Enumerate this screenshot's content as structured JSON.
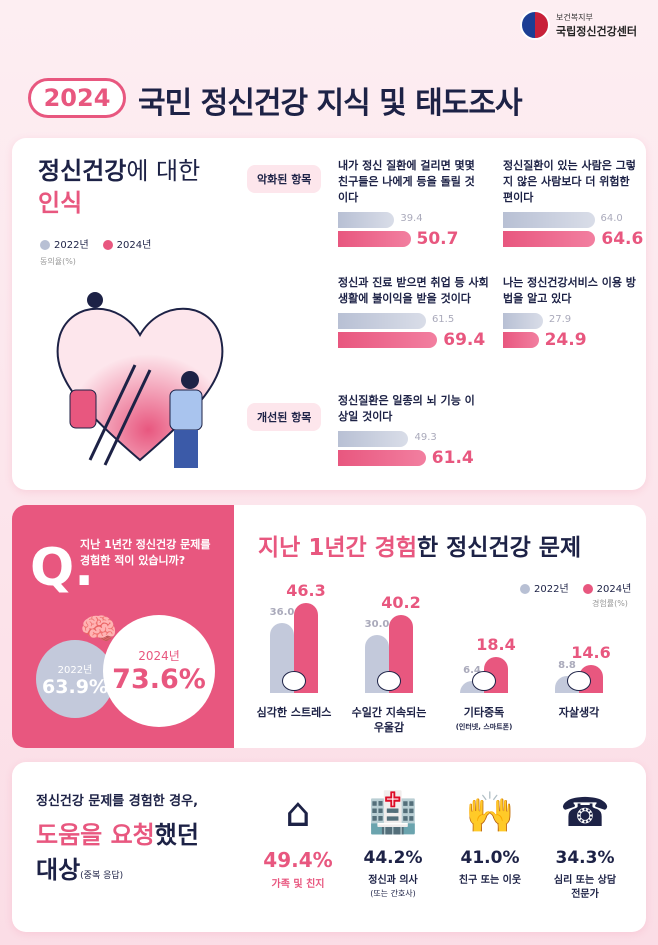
{
  "header": {
    "ministry": "보건복지부",
    "center": "국립정신건강센터",
    "year": "2024",
    "title": "국민 정신건강 지식 및 태도조사"
  },
  "colors": {
    "y2022": "#b8c0d4",
    "y2024": "#e8577f",
    "navy": "#1d2246"
  },
  "section1": {
    "title_a": "정신건강",
    "title_b": "에 대한",
    "title_c": "인식",
    "legend": [
      "2022년",
      "2024년"
    ],
    "unit": "동의율(%)",
    "tag_worse": "악화된 항목",
    "tag_better": "개선된 항목"
  },
  "section2": {
    "question_mark": "Q.",
    "question": "지난 1년간 정신건강 문제를 경험한 적이 있습니까?",
    "y2022_label": "2022년",
    "y2022_value": "63.9%",
    "y2024_label": "2024년",
    "y2024_value": "73.6%",
    "title_a": "지난 1년간 경험",
    "title_b": "한 정신건강 문제",
    "legend": [
      "2022년",
      "2024년"
    ],
    "unit": "경험률(%)"
  },
  "section3": {
    "title_a": "정신건강 문제를 경험한 경우,",
    "title_b": "도움을 요청",
    "title_c": "했던",
    "title_d": "대상",
    "title_note": "(중복 응답)",
    "items": [
      {
        "value": "49.4%",
        "label": "가족 및 친지",
        "sub": "",
        "icon": "house-icon"
      },
      {
        "value": "44.2%",
        "label": "정신과 의사",
        "sub": "(또는 간호사)",
        "icon": "hospital-icon"
      },
      {
        "value": "41.0%",
        "label": "친구 또는 이웃",
        "sub": "",
        "icon": "high-five-icon"
      },
      {
        "value": "34.3%",
        "label": "심리 또는 상담 전문가",
        "sub": "",
        "icon": "phone-counsel-icon"
      }
    ]
  },
  "chart_data": [
    {
      "type": "bar",
      "title": "정신건강에 대한 인식",
      "ylabel": "동의율(%)",
      "series_names": [
        "2022년",
        "2024년"
      ],
      "categories": [
        "내가 정신 질환에 걸리면 몇몇 친구들은 나에게 등을 돌릴 것이다",
        "정신질환이 있는 사람은 그렇지 않은 사람보다 더 위험한 편이다",
        "정신과 진료 받으면 취업 등 사회생활에 불이익을 받을 것이다",
        "나는 정신건강서비스 이용 방법을 알고 있다",
        "정신질환은 일종의 뇌 기능 이상일 것이다"
      ],
      "series": [
        {
          "name": "2022년",
          "values": [
            39.4,
            64.0,
            61.5,
            27.9,
            49.3
          ]
        },
        {
          "name": "2024년",
          "values": [
            50.7,
            64.6,
            69.4,
            24.9,
            61.4
          ]
        }
      ]
    },
    {
      "type": "bar",
      "title": "지난 1년간 경험한 정신건강 문제",
      "ylabel": "경험률(%)",
      "categories": [
        "심각한 스트레스",
        "수일간 지속되는 우울감",
        "기타중독",
        "자살생각"
      ],
      "category_notes": [
        "",
        "",
        "(인터넷, 스마트폰)",
        ""
      ],
      "series": [
        {
          "name": "2022년",
          "values": [
            36.0,
            30.0,
            6.4,
            8.8
          ]
        },
        {
          "name": "2024년",
          "values": [
            46.3,
            40.2,
            18.4,
            14.6
          ]
        }
      ],
      "legend": "top-right"
    }
  ]
}
